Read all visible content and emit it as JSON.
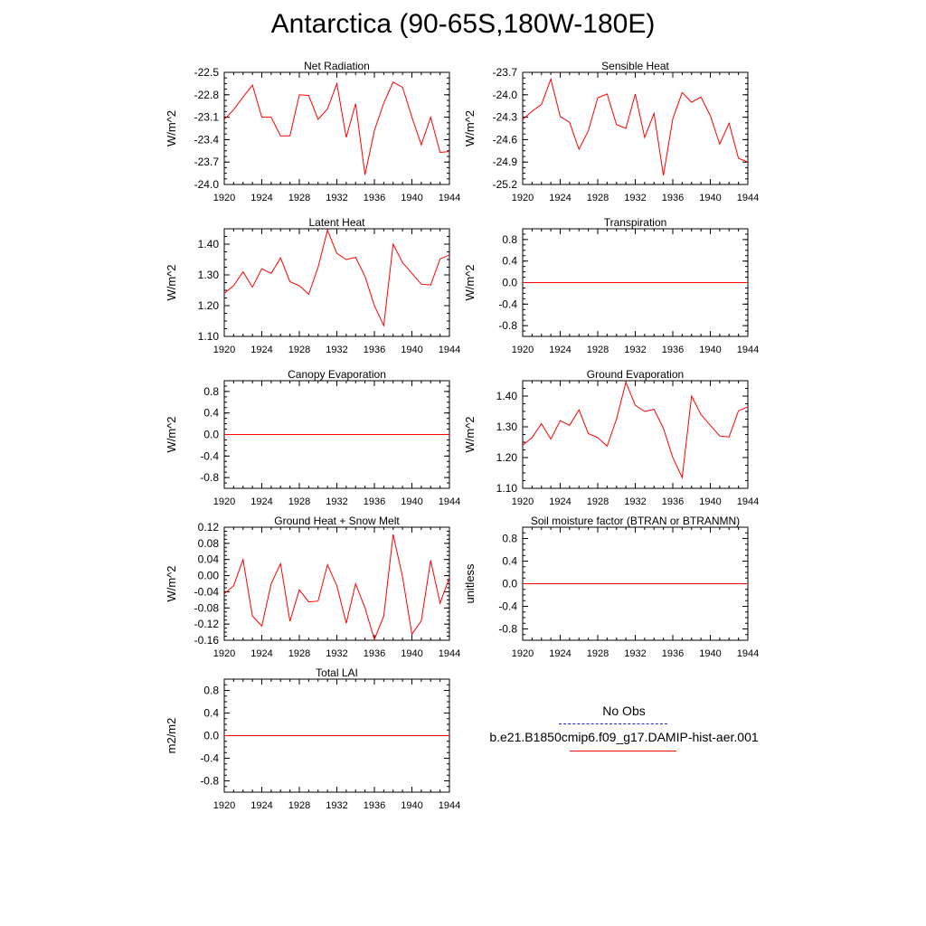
{
  "page": {
    "title": "Antarctica (90-65S,180W-180E)"
  },
  "legend": {
    "items": [
      {
        "label": "No Obs",
        "color": "#2222cc",
        "style": "dashed"
      },
      {
        "label": "b.e21.B1850cmip6.f09_g17.DAMIP-hist-aer.001",
        "color": "#ff0000",
        "style": "solid"
      }
    ]
  },
  "chart_data": [
    {
      "type": "line",
      "title": "Net Radiation",
      "ylabel": "W/m^2",
      "xlim": [
        1920,
        1944
      ],
      "ylim": [
        -24.0,
        -22.5
      ],
      "xticks": [
        "1920",
        "1924",
        "1928",
        "1932",
        "1936",
        "1940",
        "1944"
      ],
      "yticks": [
        "-22.5",
        "-22.8",
        "-23.1",
        "-23.4",
        "-23.7",
        "-24.0"
      ],
      "series": [
        {
          "color": "#ff0000",
          "x": [
            1920,
            1921,
            1922,
            1923,
            1924,
            1925,
            1926,
            1927,
            1928,
            1929,
            1930,
            1931,
            1932,
            1933,
            1934,
            1935,
            1936,
            1937,
            1938,
            1939,
            1940,
            1941,
            1942,
            1943,
            1944
          ],
          "values": [
            -23.13,
            -23.0,
            -22.83,
            -22.67,
            -23.1,
            -23.1,
            -23.35,
            -23.35,
            -22.8,
            -22.81,
            -23.13,
            -22.99,
            -22.65,
            -23.37,
            -22.92,
            -23.87,
            -23.28,
            -22.91,
            -22.63,
            -22.7,
            -23.1,
            -23.47,
            -23.1,
            -23.57,
            -23.56
          ]
        }
      ]
    },
    {
      "type": "line",
      "title": "Sensible Heat",
      "ylabel": "W/m^2",
      "xlim": [
        1920,
        1944
      ],
      "ylim": [
        -25.2,
        -23.7
      ],
      "xticks": [
        "1920",
        "1924",
        "1928",
        "1932",
        "1936",
        "1940",
        "1944"
      ],
      "yticks": [
        "-23.7",
        "-24.0",
        "-24.3",
        "-24.6",
        "-24.9",
        "-25.2"
      ],
      "series": [
        {
          "color": "#ff0000",
          "x": [
            1920,
            1921,
            1922,
            1923,
            1924,
            1925,
            1926,
            1927,
            1928,
            1929,
            1930,
            1931,
            1932,
            1933,
            1934,
            1935,
            1936,
            1937,
            1938,
            1939,
            1940,
            1941,
            1942,
            1943,
            1944
          ],
          "values": [
            -24.33,
            -24.22,
            -24.13,
            -23.79,
            -24.29,
            -24.37,
            -24.73,
            -24.48,
            -24.04,
            -23.99,
            -24.4,
            -24.45,
            -23.99,
            -24.57,
            -24.25,
            -25.08,
            -24.32,
            -23.97,
            -24.1,
            -24.03,
            -24.28,
            -24.66,
            -24.38,
            -24.85,
            -24.9
          ]
        }
      ]
    },
    {
      "type": "line",
      "title": "Latent Heat",
      "ylabel": "W/m^2",
      "xlim": [
        1920,
        1944
      ],
      "ylim": [
        1.1,
        1.45
      ],
      "xticks": [
        "1920",
        "1924",
        "1928",
        "1932",
        "1936",
        "1940",
        "1944"
      ],
      "yticks": [
        "1.10",
        "1.20",
        "1.30",
        "1.40"
      ],
      "series": [
        {
          "color": "#ff0000",
          "x": [
            1920,
            1921,
            1922,
            1923,
            1924,
            1925,
            1926,
            1927,
            1928,
            1929,
            1930,
            1931,
            1932,
            1933,
            1934,
            1935,
            1936,
            1937,
            1938,
            1939,
            1940,
            1941,
            1942,
            1943,
            1944
          ],
          "values": [
            1.24,
            1.265,
            1.31,
            1.26,
            1.32,
            1.305,
            1.355,
            1.278,
            1.265,
            1.237,
            1.325,
            1.445,
            1.37,
            1.35,
            1.357,
            1.295,
            1.2,
            1.135,
            1.4,
            1.34,
            1.305,
            1.27,
            1.267,
            1.352,
            1.365
          ]
        }
      ]
    },
    {
      "type": "line",
      "title": "Transpiration",
      "ylabel": "W/m^2",
      "xlim": [
        1920,
        1944
      ],
      "ylim": [
        -1.0,
        1.0
      ],
      "xticks": [
        "1920",
        "1924",
        "1928",
        "1932",
        "1936",
        "1940",
        "1944"
      ],
      "yticks": [
        "0.8",
        "0.4",
        "0.0",
        "-0.4",
        "-0.8"
      ],
      "series": [
        {
          "color": "#ff0000",
          "x": [
            1920,
            1944
          ],
          "values": [
            0.0,
            0.0
          ]
        }
      ]
    },
    {
      "type": "line",
      "title": "Canopy Evaporation",
      "ylabel": "W/m^2",
      "xlim": [
        1920,
        1944
      ],
      "ylim": [
        -1.0,
        1.0
      ],
      "xticks": [
        "1920",
        "1924",
        "1928",
        "1932",
        "1936",
        "1940",
        "1944"
      ],
      "yticks": [
        "0.8",
        "0.4",
        "0.0",
        "-0.4",
        "-0.8"
      ],
      "series": [
        {
          "color": "#ff0000",
          "x": [
            1920,
            1944
          ],
          "values": [
            0.0,
            0.0
          ]
        }
      ]
    },
    {
      "type": "line",
      "title": "Ground Evaporation",
      "ylabel": "W/m^2",
      "xlim": [
        1920,
        1944
      ],
      "ylim": [
        1.1,
        1.45
      ],
      "xticks": [
        "1920",
        "1924",
        "1928",
        "1932",
        "1936",
        "1940",
        "1944"
      ],
      "yticks": [
        "1.10",
        "1.20",
        "1.30",
        "1.40"
      ],
      "series": [
        {
          "color": "#ff0000",
          "x": [
            1920,
            1921,
            1922,
            1923,
            1924,
            1925,
            1926,
            1927,
            1928,
            1929,
            1930,
            1931,
            1932,
            1933,
            1934,
            1935,
            1936,
            1937,
            1938,
            1939,
            1940,
            1941,
            1942,
            1943,
            1944
          ],
          "values": [
            1.24,
            1.265,
            1.31,
            1.26,
            1.32,
            1.305,
            1.355,
            1.278,
            1.265,
            1.237,
            1.325,
            1.445,
            1.37,
            1.35,
            1.357,
            1.295,
            1.2,
            1.135,
            1.4,
            1.34,
            1.305,
            1.27,
            1.267,
            1.352,
            1.365
          ]
        }
      ]
    },
    {
      "type": "line",
      "title": "Ground Heat + Snow Melt",
      "ylabel": "W/m^2",
      "xlim": [
        1920,
        1944
      ],
      "ylim": [
        -0.16,
        0.12
      ],
      "xticks": [
        "1920",
        "1924",
        "1928",
        "1932",
        "1936",
        "1940",
        "1944"
      ],
      "yticks": [
        "0.12",
        "0.08",
        "0.04",
        "0.00",
        "-0.04",
        "-0.08",
        "-0.12",
        "-0.16"
      ],
      "series": [
        {
          "color": "#ff0000",
          "x": [
            1920,
            1921,
            1922,
            1923,
            1924,
            1925,
            1926,
            1927,
            1928,
            1929,
            1930,
            1931,
            1932,
            1933,
            1934,
            1935,
            1936,
            1937,
            1938,
            1939,
            1940,
            1941,
            1942,
            1943,
            1944
          ],
          "values": [
            -0.045,
            -0.025,
            0.04,
            -0.1,
            -0.125,
            -0.02,
            0.03,
            -0.113,
            -0.035,
            -0.065,
            -0.063,
            0.027,
            -0.025,
            -0.118,
            -0.02,
            -0.08,
            -0.158,
            -0.1,
            0.102,
            -0.003,
            -0.145,
            -0.112,
            0.038,
            -0.068,
            -0.005
          ]
        }
      ]
    },
    {
      "type": "line",
      "title": "Soil moisture factor (BTRAN or BTRANMN)",
      "ylabel": "unitless",
      "xlim": [
        1920,
        1944
      ],
      "ylim": [
        -1.0,
        1.0
      ],
      "xticks": [
        "1920",
        "1924",
        "1928",
        "1932",
        "1936",
        "1940",
        "1944"
      ],
      "yticks": [
        "0.8",
        "0.4",
        "0.0",
        "-0.4",
        "-0.8"
      ],
      "series": [
        {
          "color": "#ff0000",
          "x": [
            1920,
            1944
          ],
          "values": [
            0.0,
            0.0
          ]
        }
      ]
    },
    {
      "type": "line",
      "title": "Total LAI",
      "ylabel": "m2/m2",
      "xlim": [
        1920,
        1944
      ],
      "ylim": [
        -1.0,
        1.0
      ],
      "xticks": [
        "1920",
        "1924",
        "1928",
        "1932",
        "1936",
        "1940",
        "1944"
      ],
      "yticks": [
        "0.8",
        "0.4",
        "0.0",
        "-0.4",
        "-0.8"
      ],
      "series": [
        {
          "color": "#ff0000",
          "x": [
            1920,
            1944
          ],
          "values": [
            0.0,
            0.0
          ]
        }
      ]
    }
  ]
}
